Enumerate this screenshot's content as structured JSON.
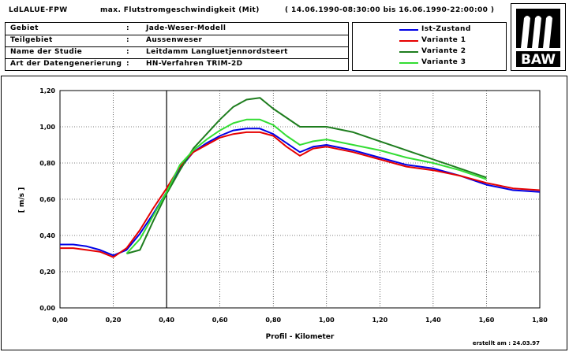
{
  "header": {
    "code": "LdLALUE-FPW",
    "title": "max. Flutstromgeschwindigkeit (Mit)",
    "period": "( 14.06.1990-08:30:00  bis  16.06.1990-22:00:00 )"
  },
  "info": {
    "rows": [
      {
        "label": "Gebiet",
        "sep": ":",
        "value": "Jade-Weser-Modell"
      },
      {
        "label": "Teilgebiet",
        "sep": ":",
        "value": "Aussenweser"
      },
      {
        "label": "Name der Studie",
        "sep": ":",
        "value": "Leitdamm Langluetjennordsteert"
      },
      {
        "label": "Art der Datengenerierung",
        "sep": ":",
        "value": "HN-Verfahren TRIM-2D"
      }
    ]
  },
  "logo": {
    "text": "BAW"
  },
  "footer": {
    "created": "erstellt am :  24.03.97"
  },
  "colors": {
    "blue": "#0000e6",
    "red": "#e60000",
    "darkgreen": "#1e7d1e",
    "lightgreen": "#33dd33"
  },
  "chart_data": {
    "type": "line",
    "xlabel": "Profil - Kilometer",
    "ylabel": "[ m/s ]",
    "xlim": [
      0.0,
      1.8
    ],
    "ylim": [
      0.0,
      1.2
    ],
    "xticks": [
      "0,00",
      "0,20",
      "0,40",
      "0,60",
      "0,80",
      "1,00",
      "1,20",
      "1,40",
      "1,60",
      "1,80"
    ],
    "yticks": [
      "0,00",
      "0,20",
      "0,40",
      "0,60",
      "0,80",
      "1,00",
      "1,20"
    ],
    "vline": 0.4,
    "legend_position": "top-right (header box)",
    "series": [
      {
        "name": "Ist-Zustand",
        "color": "#0000e6",
        "x": [
          0.0,
          0.05,
          0.1,
          0.15,
          0.2,
          0.25,
          0.3,
          0.35,
          0.4,
          0.45,
          0.5,
          0.55,
          0.6,
          0.65,
          0.7,
          0.75,
          0.8,
          0.85,
          0.9,
          0.95,
          1.0,
          1.1,
          1.2,
          1.3,
          1.4,
          1.5,
          1.6,
          1.7,
          1.8
        ],
        "y": [
          0.35,
          0.35,
          0.34,
          0.32,
          0.29,
          0.32,
          0.41,
          0.52,
          0.64,
          0.77,
          0.86,
          0.91,
          0.95,
          0.98,
          0.99,
          0.99,
          0.96,
          0.91,
          0.86,
          0.89,
          0.9,
          0.87,
          0.83,
          0.79,
          0.77,
          0.73,
          0.68,
          0.65,
          0.64
        ]
      },
      {
        "name": "Variante 1",
        "color": "#e60000",
        "x": [
          0.0,
          0.05,
          0.1,
          0.15,
          0.2,
          0.25,
          0.3,
          0.35,
          0.4,
          0.45,
          0.5,
          0.55,
          0.6,
          0.65,
          0.7,
          0.75,
          0.8,
          0.85,
          0.9,
          0.95,
          1.0,
          1.1,
          1.2,
          1.3,
          1.4,
          1.5,
          1.6,
          1.7,
          1.8
        ],
        "y": [
          0.33,
          0.33,
          0.32,
          0.31,
          0.28,
          0.33,
          0.43,
          0.55,
          0.66,
          0.78,
          0.86,
          0.9,
          0.94,
          0.96,
          0.97,
          0.97,
          0.95,
          0.89,
          0.84,
          0.88,
          0.89,
          0.86,
          0.82,
          0.78,
          0.76,
          0.73,
          0.69,
          0.66,
          0.65
        ]
      },
      {
        "name": "Variante 2",
        "color": "#1e7d1e",
        "x": [
          0.25,
          0.3,
          0.35,
          0.4,
          0.45,
          0.5,
          0.55,
          0.6,
          0.65,
          0.7,
          0.75,
          0.8,
          0.85,
          0.9,
          0.95,
          1.0,
          1.1,
          1.2,
          1.3,
          1.4,
          1.5,
          1.6
        ],
        "y": [
          0.3,
          0.32,
          0.48,
          0.63,
          0.76,
          0.88,
          0.96,
          1.04,
          1.11,
          1.15,
          1.16,
          1.1,
          1.05,
          1.0,
          1.0,
          1.0,
          0.97,
          0.92,
          0.87,
          0.82,
          0.77,
          0.72
        ]
      },
      {
        "name": "Variante 3",
        "color": "#33dd33",
        "x": [
          0.25,
          0.3,
          0.35,
          0.4,
          0.45,
          0.5,
          0.55,
          0.6,
          0.65,
          0.7,
          0.75,
          0.8,
          0.85,
          0.9,
          0.95,
          1.0,
          1.1,
          1.2,
          1.3,
          1.4,
          1.5,
          1.6
        ],
        "y": [
          0.3,
          0.38,
          0.51,
          0.64,
          0.79,
          0.87,
          0.93,
          0.98,
          1.02,
          1.04,
          1.04,
          1.01,
          0.95,
          0.9,
          0.92,
          0.93,
          0.9,
          0.87,
          0.83,
          0.8,
          0.76,
          0.71
        ]
      }
    ]
  }
}
